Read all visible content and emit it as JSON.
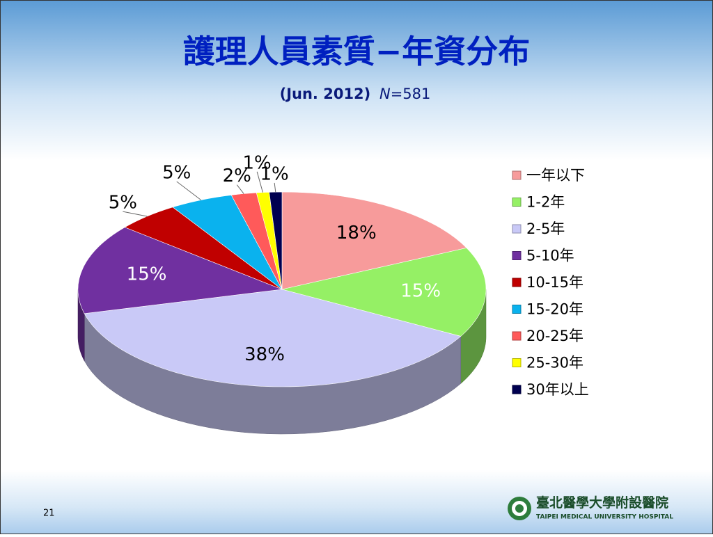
{
  "chart_data": {
    "type": "pie3d",
    "title": "護理人員素質−年資分布",
    "subtitle": {
      "date": "(Jun. 2012)",
      "n_symbol": "N",
      "n_text": "=581"
    },
    "categories": [
      "一年以下",
      "1-2年",
      "2-5年",
      "5-10年",
      "10-15年",
      "15-20年",
      "20-25年",
      "25-30年",
      "30年以上"
    ],
    "values": [
      18,
      15,
      38,
      15,
      5,
      5,
      2,
      1,
      1
    ],
    "value_labels": [
      "18%",
      "15%",
      "38%",
      "15%",
      "5%",
      "5%",
      "2%",
      "1%",
      "1%"
    ],
    "colors": [
      "#f79b9b",
      "#95f065",
      "#c9c9f7",
      "#7030a0",
      "#c00000",
      "#0ab2ee",
      "#ff5a5a",
      "#ffff00",
      "#000050"
    ],
    "legend": "right"
  },
  "slide": {
    "page_number": "21",
    "logo_zh": "臺北醫學大學附設醫院",
    "logo_en": "TAIPEI MEDICAL UNIVERSITY HOSPITAL"
  }
}
